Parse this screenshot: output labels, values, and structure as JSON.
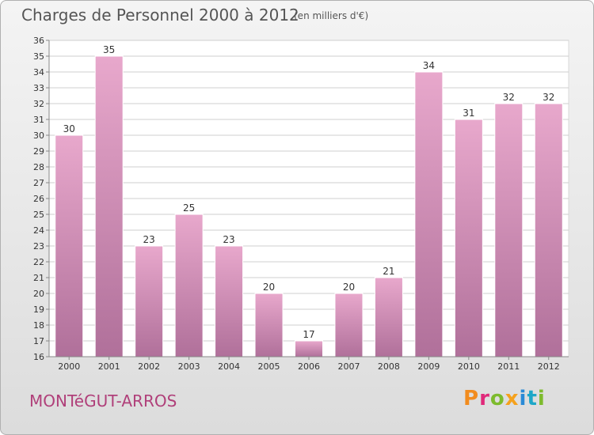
{
  "header": {
    "title": "Charges de Personnel 2000 à 2012",
    "subtitle": "(en milliers d'€)"
  },
  "footer": {
    "place": "MONTéGUT-ARROS",
    "logo": {
      "text": "Proxiti",
      "letter_colors": [
        "#f28c1e",
        "#e0297a",
        "#7dbb2d",
        "#f5a11c",
        "#2a8ad6",
        "#1ea7c8",
        "#7dbb2d"
      ]
    }
  },
  "colors": {
    "bar_light": "#e8a8cc",
    "bar_dark": "#b0709a",
    "accent": "#b0407a",
    "grid": "#cfcfcf"
  },
  "chart_data": {
    "type": "bar",
    "title": "Charges de Personnel 2000 à 2012",
    "subtitle": "(en milliers d'€)",
    "xlabel": "",
    "ylabel": "",
    "categories": [
      "2000",
      "2001",
      "2002",
      "2003",
      "2004",
      "2005",
      "2006",
      "2007",
      "2008",
      "2009",
      "2010",
      "2011",
      "2012"
    ],
    "values": [
      30,
      35,
      23,
      25,
      23,
      20,
      17,
      20,
      21,
      34,
      31,
      32,
      32
    ],
    "ylim": [
      16,
      36
    ],
    "ytick_step": 1,
    "grid": true
  }
}
